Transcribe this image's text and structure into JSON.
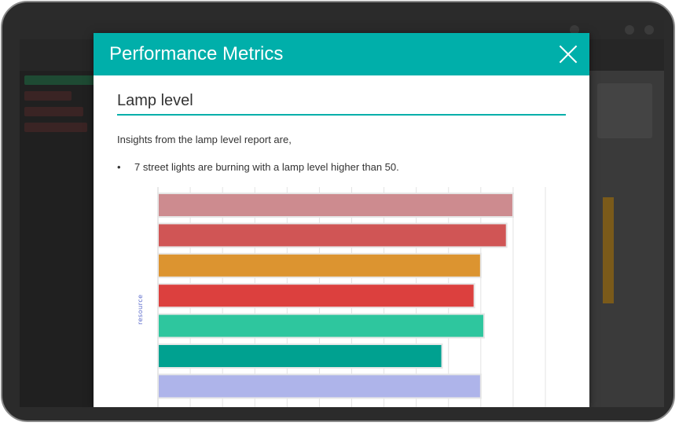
{
  "modal": {
    "title": "Performance Metrics",
    "close_label": "×",
    "section_title": "Lamp level",
    "intro": "Insights from the lamp level report are,",
    "bullets": [
      {
        "marker": "•",
        "text": "7 street lights are burning with a lamp level higher than 50."
      }
    ]
  },
  "chart_data": {
    "type": "bar",
    "orientation": "horizontal",
    "ylabel": "resource",
    "grid": true,
    "xlim": [
      0,
      120
    ],
    "series": [
      {
        "values": [
          110,
          108,
          100,
          98,
          101,
          88,
          100
        ],
        "colors": [
          "#cd8b8f",
          "#d05555",
          "#dc9430",
          "#dc403e",
          "#2ec69e",
          "#00a190",
          "#aeb4ea"
        ]
      }
    ]
  }
}
